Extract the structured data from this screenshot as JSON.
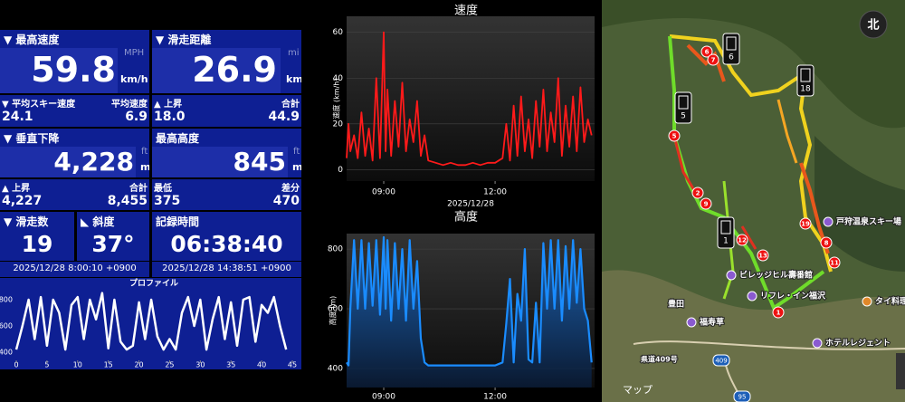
{
  "stats": {
    "max_speed": {
      "label": "▼ 最高速度",
      "unit_alt": "MPH",
      "value": "59.8",
      "unit": "km/h"
    },
    "distance": {
      "label": "▼ 滑走距離",
      "unit_alt": "mi",
      "value": "26.9",
      "unit": "km"
    },
    "avg_ski_speed": {
      "label": "▼ 平均スキー速度",
      "value": "24.1"
    },
    "avg_speed": {
      "label": "平均速度",
      "value": "6.9"
    },
    "ascent_distance": {
      "label": "▲ 上昇",
      "value": "18.0"
    },
    "total_distance": {
      "label": "合計",
      "value": "44.9"
    },
    "vertical_descent": {
      "label": "▼ 垂直下降",
      "unit_alt": "ft",
      "value": "4,228",
      "unit": "m"
    },
    "max_altitude": {
      "label": "最高高度",
      "unit_alt": "ft",
      "value": "845",
      "unit": "m"
    },
    "vertical_ascent": {
      "label": "▲ 上昇",
      "value": "4,227"
    },
    "vertical_total": {
      "label": "合計",
      "value": "8,455"
    },
    "min_altitude": {
      "label": "最低",
      "value": "375"
    },
    "altitude_diff": {
      "label": "差分",
      "value": "470"
    },
    "runs": {
      "label": "▼ 滑走数",
      "value": "19"
    },
    "slope": {
      "label": "◣ 斜度",
      "value": "37°"
    },
    "duration": {
      "label": "記録時間",
      "value": "06:38:40"
    },
    "start": "2025/12/28 8:00:10 +0900",
    "end": "2025/12/28 14:38:51 +0900"
  },
  "chart_data": [
    {
      "type": "line",
      "title": "プロファイル",
      "x": [
        0,
        1,
        2,
        3,
        4,
        5,
        6,
        7,
        8,
        9,
        10,
        11,
        12,
        13,
        14,
        15,
        16,
        17,
        18,
        19,
        20,
        21,
        22,
        23,
        24,
        25,
        26,
        27,
        28,
        29,
        30,
        31,
        32,
        33,
        34,
        35,
        36,
        37,
        38,
        39,
        40,
        41,
        42,
        43,
        44
      ],
      "values": [
        420,
        600,
        800,
        500,
        820,
        450,
        800,
        700,
        420,
        760,
        820,
        500,
        800,
        650,
        850,
        430,
        800,
        480,
        420,
        450,
        780,
        500,
        800,
        520,
        420,
        500,
        420,
        700,
        820,
        600,
        800,
        420,
        650,
        820,
        500,
        780,
        450,
        800,
        820,
        480,
        760,
        700,
        820,
        600,
        420
      ],
      "color": "#ffffff",
      "xlim": [
        0,
        45
      ],
      "xticks": [
        0,
        5,
        10,
        15,
        20,
        25,
        30,
        35,
        40,
        45
      ],
      "ylim": [
        338,
        862
      ],
      "yticks": [
        400,
        600,
        800
      ],
      "grid": false
    },
    {
      "type": "line",
      "title": "速度",
      "y_label": "速度 (km/h)",
      "x_label": "2025/12/28",
      "x": [
        8.0,
        8.05,
        8.1,
        8.2,
        8.3,
        8.4,
        8.5,
        8.6,
        8.7,
        8.8,
        8.9,
        9.0,
        9.05,
        9.1,
        9.2,
        9.3,
        9.4,
        9.5,
        9.6,
        9.7,
        9.8,
        9.9,
        10.0,
        10.1,
        10.2,
        10.4,
        10.6,
        10.8,
        11.0,
        11.2,
        11.4,
        11.6,
        11.8,
        12.0,
        12.2,
        12.3,
        12.4,
        12.5,
        12.6,
        12.7,
        12.8,
        12.9,
        13.0,
        13.1,
        13.2,
        13.3,
        13.4,
        13.5,
        13.6,
        13.7,
        13.8,
        13.9,
        14.0,
        14.1,
        14.2,
        14.3,
        14.4,
        14.5,
        14.6
      ],
      "values": [
        5,
        20,
        8,
        15,
        5,
        25,
        6,
        18,
        4,
        40,
        5,
        60,
        8,
        35,
        6,
        30,
        10,
        38,
        8,
        22,
        12,
        30,
        6,
        15,
        4,
        3,
        2,
        3,
        2,
        2,
        3,
        2,
        3,
        3,
        5,
        20,
        4,
        28,
        6,
        32,
        8,
        22,
        5,
        30,
        10,
        35,
        8,
        25,
        12,
        40,
        6,
        28,
        10,
        32,
        8,
        36,
        12,
        22,
        15
      ],
      "color": "#ff1a1a",
      "xlim": [
        8.0,
        14.68
      ],
      "xticks": [
        {
          "value": 9,
          "label": "09:00"
        },
        {
          "value": 12,
          "label": "12:00"
        }
      ],
      "ylim": [
        -5,
        67
      ],
      "yticks": [
        0,
        20,
        40,
        60
      ],
      "grid": true
    },
    {
      "type": "area",
      "title": "高度",
      "y_label": "高度 (m)",
      "x": [
        8.0,
        8.05,
        8.1,
        8.2,
        8.3,
        8.4,
        8.5,
        8.6,
        8.7,
        8.8,
        8.9,
        9.0,
        9.05,
        9.1,
        9.2,
        9.3,
        9.4,
        9.5,
        9.6,
        9.7,
        9.8,
        9.9,
        10.0,
        10.1,
        10.2,
        10.4,
        10.6,
        10.8,
        11.0,
        11.2,
        11.4,
        11.6,
        11.8,
        12.0,
        12.2,
        12.3,
        12.4,
        12.5,
        12.6,
        12.7,
        12.8,
        12.9,
        13.0,
        13.1,
        13.2,
        13.3,
        13.4,
        13.5,
        13.6,
        13.7,
        13.8,
        13.9,
        14.0,
        14.1,
        14.2,
        14.3,
        14.4,
        14.5,
        14.6
      ],
      "values": [
        420,
        410,
        600,
        830,
        600,
        830,
        600,
        820,
        610,
        830,
        580,
        840,
        600,
        830,
        560,
        820,
        600,
        800,
        560,
        830,
        600,
        760,
        500,
        420,
        410,
        410,
        410,
        410,
        410,
        410,
        410,
        410,
        410,
        410,
        420,
        550,
        700,
        420,
        650,
        560,
        800,
        430,
        420,
        620,
        420,
        820,
        600,
        830,
        600,
        830,
        560,
        810,
        600,
        830,
        620,
        800,
        600,
        560,
        420
      ],
      "color": "#1a8cff",
      "xlim": [
        8.0,
        14.68
      ],
      "xticks": [
        {
          "value": 9,
          "label": "09:00"
        },
        {
          "value": 12,
          "label": "12:00"
        }
      ],
      "ylim": [
        336,
        852
      ],
      "yticks": [
        400,
        600,
        800
      ],
      "grid": true
    }
  ],
  "map": {
    "compass": "北",
    "attribution": "マップ",
    "places": [
      "戸狩温泉スキー場",
      "ビレッジヒル壽番館",
      "リフレ・イン福沢",
      "タイ料理",
      "豊田",
      "福寿草",
      "ホテルレジェント",
      "県道409号"
    ],
    "road_shields": [
      "409",
      "95"
    ],
    "route_markers": [
      "1",
      "2",
      "5",
      "6",
      "7",
      "8",
      "9",
      "11",
      "12",
      "13",
      "19"
    ],
    "lift_markers": [
      "6",
      "18",
      "5",
      "1"
    ]
  }
}
